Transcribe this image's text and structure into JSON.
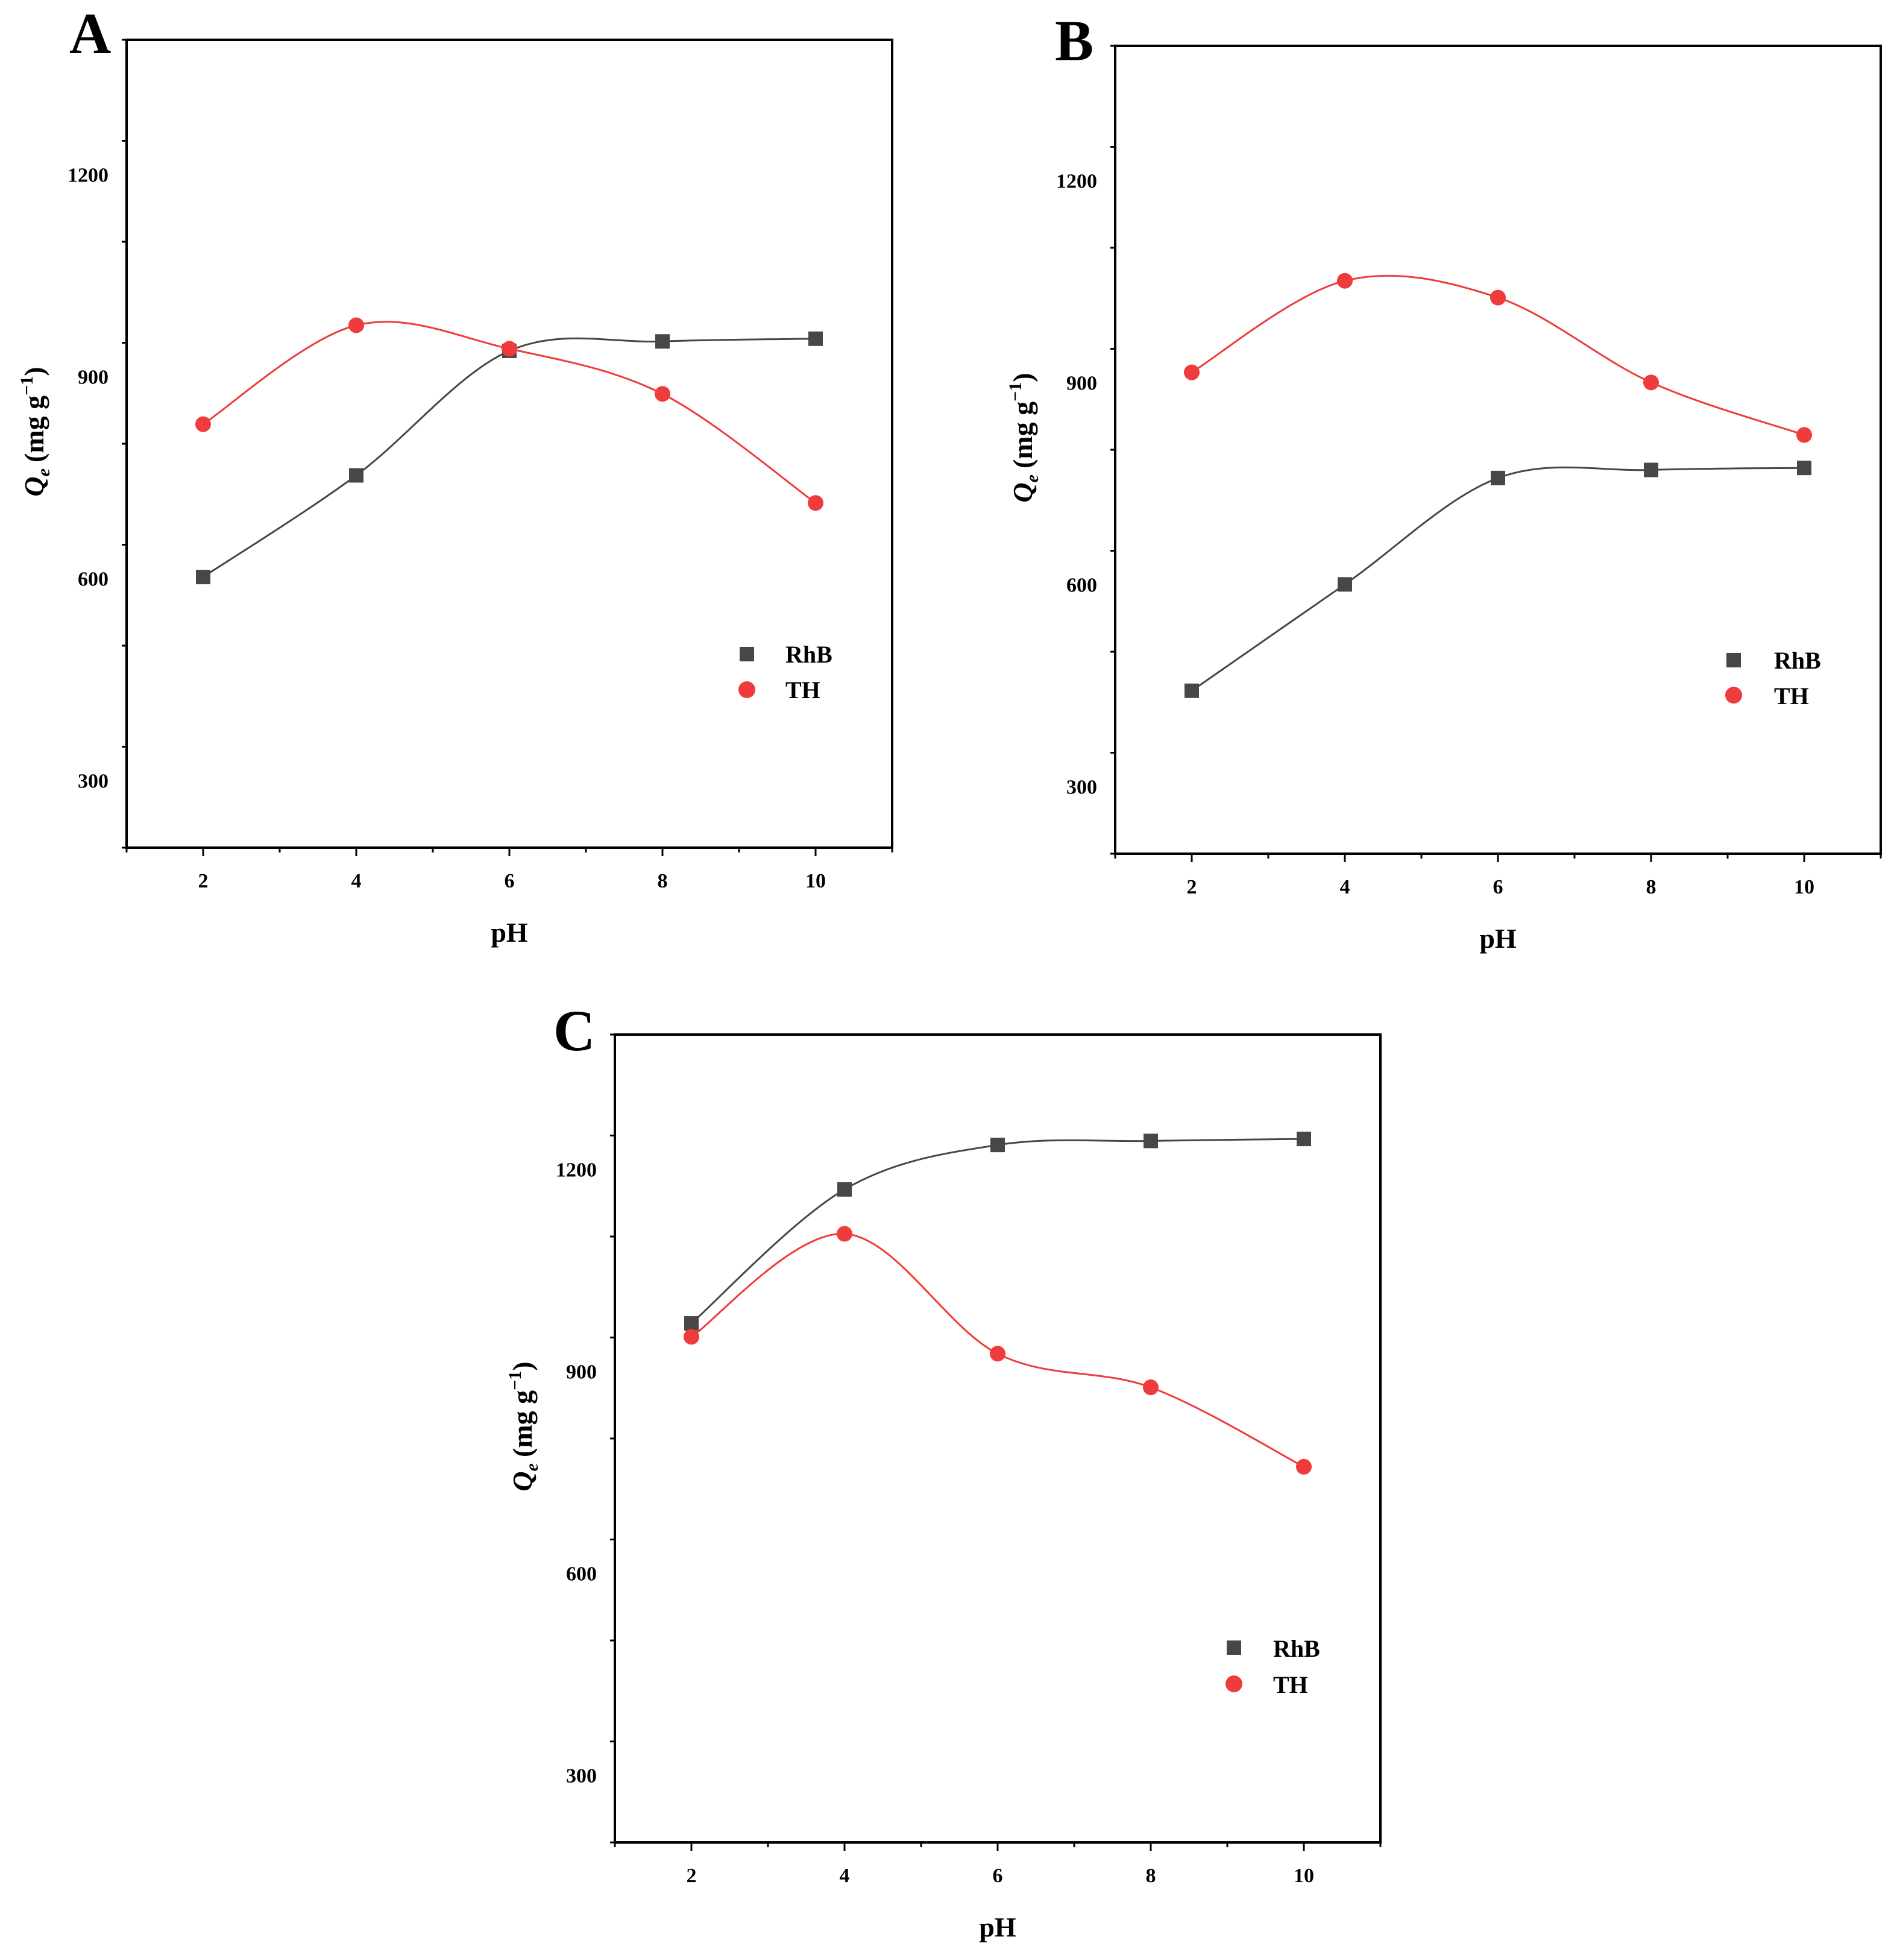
{
  "colors": {
    "RhB": "#474747",
    "TH": "#ef3b3b"
  },
  "chart_data": [
    {
      "type": "scatter",
      "panel_label": "A",
      "xlabel": "pH",
      "ylabel_main": "Q",
      "ylabel_sub": "e",
      "ylabel_units": "(mg g",
      "ylabel_sup": "−1",
      "ylabel_close": ")",
      "xlim": [
        1,
        11
      ],
      "ylim": [
        200,
        1400
      ],
      "xticks": [
        2,
        4,
        6,
        8,
        10
      ],
      "yticks": [
        300,
        600,
        900,
        1200
      ],
      "grid": false,
      "legend_placement": "lower-right",
      "series": [
        {
          "name": "RhB",
          "marker": "square",
          "color": "#474747",
          "x": [
            2,
            4,
            6,
            8,
            10
          ],
          "y": [
            602,
            753,
            938,
            952,
            956
          ]
        },
        {
          "name": "TH",
          "marker": "circle",
          "color": "#ef3b3b",
          "x": [
            2,
            4,
            6,
            8,
            10
          ],
          "y": [
            829,
            976,
            941,
            874,
            712
          ]
        }
      ]
    },
    {
      "type": "scatter",
      "panel_label": "B",
      "xlabel": "pH",
      "ylabel_main": "Q",
      "ylabel_sub": "e",
      "ylabel_units": "(mg g",
      "ylabel_sup": "−1",
      "ylabel_close": ")",
      "xlim": [
        1,
        11
      ],
      "ylim": [
        200,
        1400
      ],
      "xticks": [
        2,
        4,
        6,
        8,
        10
      ],
      "yticks": [
        300,
        600,
        900,
        1200
      ],
      "grid": false,
      "legend_placement": "lower-right",
      "series": [
        {
          "name": "RhB",
          "marker": "square",
          "color": "#474747",
          "x": [
            2,
            4,
            6,
            8,
            10
          ],
          "y": [
            442,
            600,
            758,
            770,
            773
          ]
        },
        {
          "name": "TH",
          "marker": "circle",
          "color": "#ef3b3b",
          "x": [
            2,
            4,
            6,
            8,
            10
          ],
          "y": [
            915,
            1051,
            1026,
            900,
            822
          ]
        }
      ]
    },
    {
      "type": "scatter",
      "panel_label": "C",
      "xlabel": "pH",
      "ylabel_main": "Q",
      "ylabel_sub": "e",
      "ylabel_units": "(mg g",
      "ylabel_sup": "−1",
      "ylabel_close": ")",
      "xlim": [
        1,
        11
      ],
      "ylim": [
        200,
        1400
      ],
      "xticks": [
        2,
        4,
        6,
        8,
        10
      ],
      "yticks": [
        300,
        600,
        900,
        1200
      ],
      "grid": false,
      "legend_placement": "lower-right",
      "series": [
        {
          "name": "RhB",
          "marker": "square",
          "color": "#474747",
          "x": [
            2,
            4,
            6,
            8,
            10
          ],
          "y": [
            971,
            1170,
            1236,
            1242,
            1245
          ]
        },
        {
          "name": "TH",
          "marker": "circle",
          "color": "#ef3b3b",
          "x": [
            2,
            4,
            6,
            8,
            10
          ],
          "y": [
            951,
            1104,
            926,
            876,
            758
          ]
        }
      ]
    }
  ]
}
